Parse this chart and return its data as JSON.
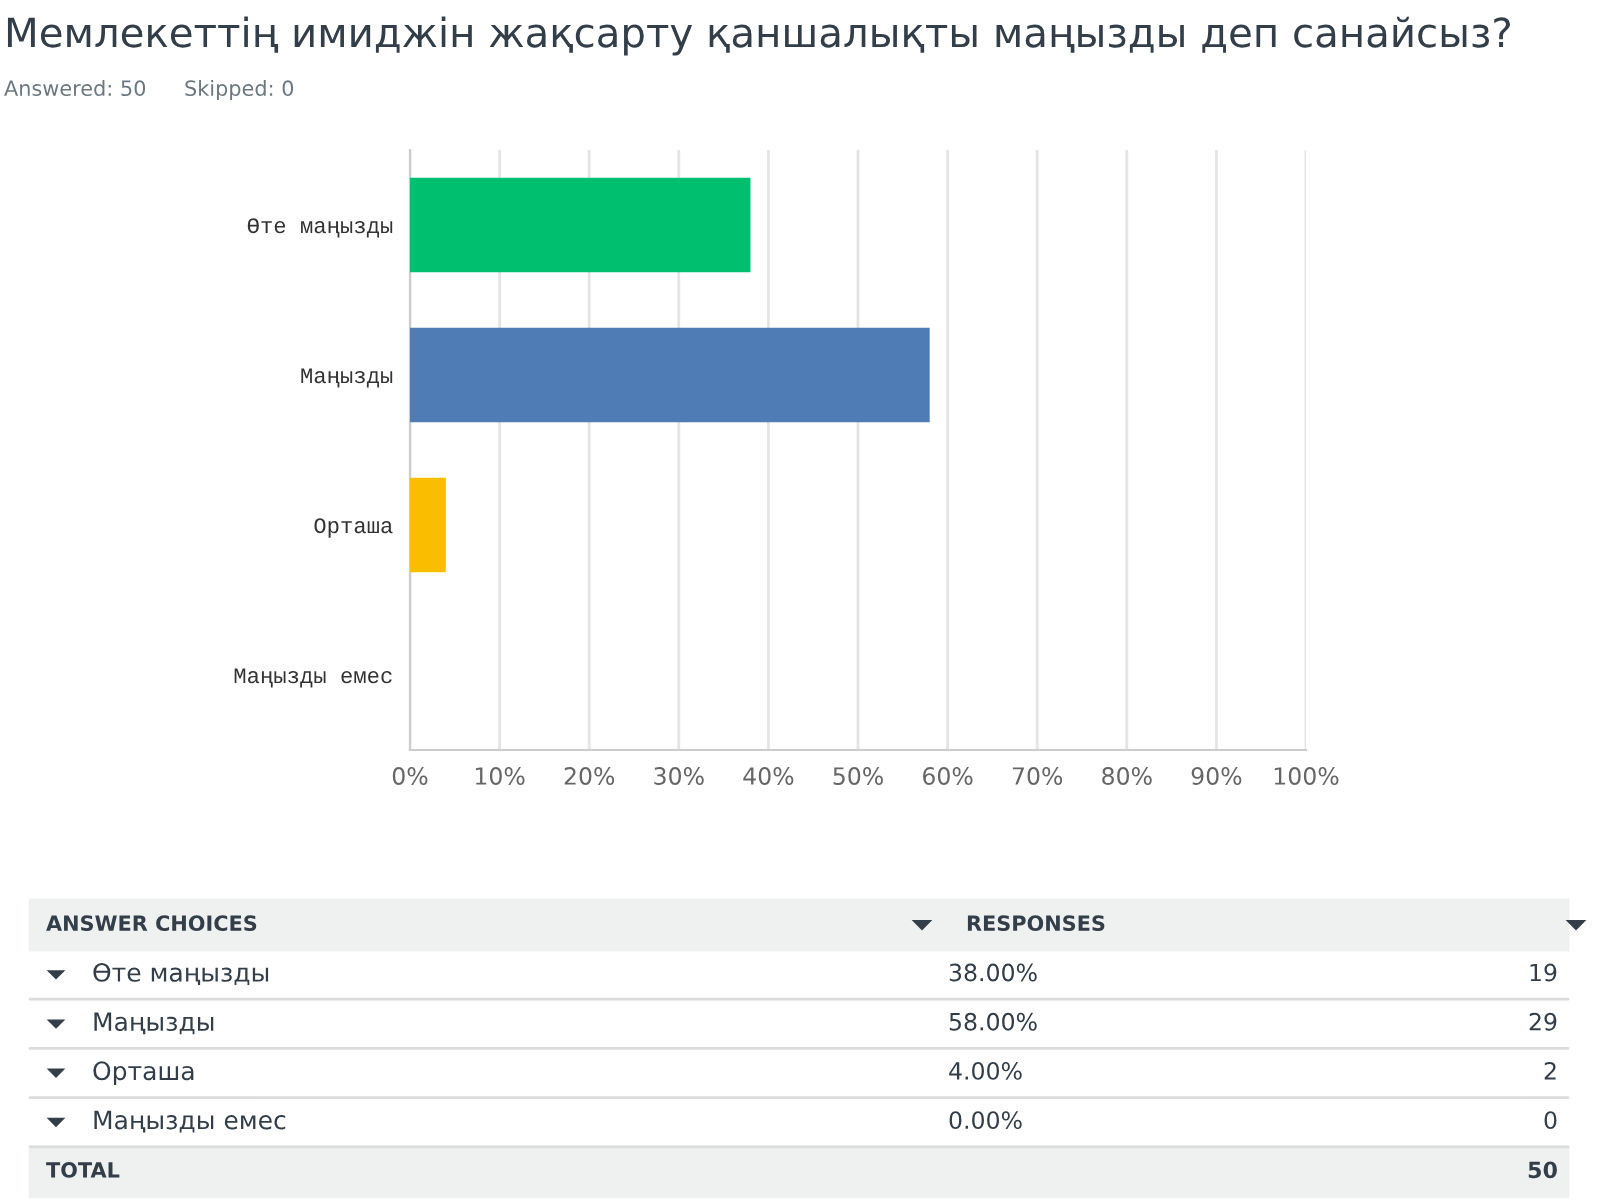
{
  "chart_data": {
    "type": "bar",
    "orientation": "horizontal",
    "title": "Мемлекеттің имиджін жақсарту қаншалықты маңызды деп санайсыз?",
    "categories": [
      "Өте маңызды",
      "Маңызды",
      "Орташа",
      "Маңызды емес"
    ],
    "values": [
      38,
      58,
      4,
      0
    ],
    "colors": [
      "#00bf6f",
      "#507cb6",
      "#f9be00",
      null
    ],
    "xlim": [
      0,
      100
    ],
    "xticks": [
      {
        "value": 0,
        "label": "0%"
      },
      {
        "value": 10,
        "label": "10%"
      },
      {
        "value": 20,
        "label": "20%"
      },
      {
        "value": 30,
        "label": "30%"
      },
      {
        "value": 40,
        "label": "40%"
      },
      {
        "value": 50,
        "label": "50%"
      },
      {
        "value": 60,
        "label": "60%"
      },
      {
        "value": 70,
        "label": "70%"
      },
      {
        "value": 80,
        "label": "80%"
      },
      {
        "value": 90,
        "label": "90%"
      },
      {
        "value": 100,
        "label": "100%"
      }
    ],
    "grid": "x",
    "annotations": [
      "Answered: 50",
      "Skipped: 0",
      "ANSWER CHOICES",
      "RESPONSES",
      "19",
      "29",
      "2",
      "0",
      "TOTAL",
      "50",
      "38.00%",
      "58.00%",
      "4.00%",
      "0.00%"
    ]
  }
}
